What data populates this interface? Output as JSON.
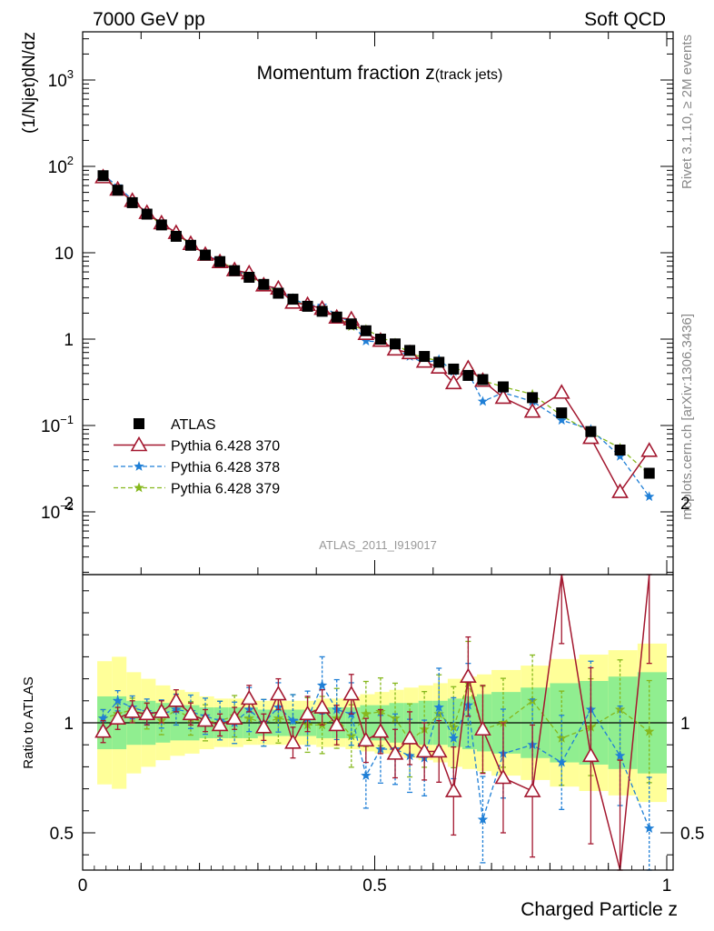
{
  "header": {
    "left": "7000 GeV pp",
    "right": "Soft QCD"
  },
  "side_labels": {
    "rivet": "Rivet 3.1.10, ≥ 2M events",
    "source": "mcplots.cern.ch [arXiv:1306.3436]"
  },
  "watermark": "ATLAS_2011_I919017",
  "colors": {
    "atlas": "#000000",
    "p370": "#a3172f",
    "p378": "#1f7fd6",
    "p379": "#86b81e",
    "band_inner": "#90ee90",
    "band_outer": "#ffff99"
  },
  "chart_data": [
    {
      "type": "line",
      "title": "Momentum fraction z(track jets)",
      "title_main": "Momentum fraction z",
      "title_sub": "(track jets)",
      "ylabel": "(1/Njet)dN/dz",
      "yscale": "log",
      "ylim": [
        0.0022,
        3000
      ],
      "xlim": [
        0,
        1.02
      ],
      "y_ticks": [
        {
          "v": 0.01,
          "base": "10",
          "exp": "−2"
        },
        {
          "v": 0.1,
          "base": "10",
          "exp": "−1"
        },
        {
          "v": 1,
          "base": "1",
          "exp": ""
        },
        {
          "v": 10,
          "base": "10",
          "exp": ""
        },
        {
          "v": 100,
          "base": "10",
          "exp": "2"
        },
        {
          "v": 1000,
          "base": "10",
          "exp": "3"
        }
      ],
      "legend": {
        "placement": "lower-left",
        "entries": [
          "ATLAS",
          "Pythia 6.428 370",
          "Pythia 6.428 378",
          "Pythia 6.428 379"
        ]
      },
      "x": [
        0.035,
        0.06,
        0.085,
        0.11,
        0.135,
        0.16,
        0.185,
        0.21,
        0.235,
        0.26,
        0.285,
        0.31,
        0.335,
        0.36,
        0.385,
        0.41,
        0.435,
        0.46,
        0.485,
        0.51,
        0.535,
        0.56,
        0.585,
        0.61,
        0.635,
        0.66,
        0.685,
        0.72,
        0.77,
        0.82,
        0.87,
        0.92,
        0.97
      ],
      "series": [
        {
          "name": "ATLAS",
          "key": "atlas",
          "marker": "square",
          "values": [
            78,
            53,
            38,
            28,
            21,
            15.5,
            12.2,
            9.4,
            7.9,
            6.2,
            5.2,
            4.3,
            3.4,
            2.9,
            2.4,
            2.1,
            1.8,
            1.5,
            1.25,
            1.0,
            0.88,
            0.74,
            0.63,
            0.54,
            0.45,
            0.38,
            0.34,
            0.28,
            0.21,
            0.14,
            0.085,
            0.052,
            0.028
          ]
        },
        {
          "name": "Pythia 6.428 370",
          "key": "p370",
          "marker": "triangle",
          "values": [
            75,
            54,
            40,
            29,
            22,
            17,
            12.7,
            9.5,
            7.8,
            6.3,
            5.8,
            4.2,
            3.85,
            2.65,
            2.5,
            2.25,
            1.78,
            1.7,
            1.15,
            0.96,
            0.76,
            0.69,
            0.55,
            0.47,
            0.31,
            0.46,
            0.33,
            0.21,
            0.145,
            0.24,
            0.072,
            0.017,
            0.051
          ]
        },
        {
          "name": "Pythia 6.428 378",
          "key": "p378",
          "marker": "star",
          "values": [
            80,
            59,
            41,
            29,
            22,
            17,
            12.6,
            9.7,
            8.0,
            6.2,
            5.5,
            4.3,
            3.7,
            2.95,
            2.45,
            2.45,
            1.9,
            1.55,
            0.95,
            0.93,
            0.77,
            0.63,
            0.53,
            0.58,
            0.42,
            0.41,
            0.19,
            0.24,
            0.19,
            0.115,
            0.09,
            0.044,
            0.015
          ]
        },
        {
          "name": "Pythia 6.428 379",
          "key": "p379",
          "marker": "star",
          "values": [
            78,
            55,
            39,
            29,
            21,
            16.5,
            12.5,
            9.4,
            8.0,
            6.5,
            5.3,
            4.3,
            3.5,
            2.95,
            2.35,
            2.05,
            1.85,
            1.4,
            1.3,
            1.05,
            0.9,
            0.68,
            0.61,
            0.56,
            0.44,
            0.45,
            0.33,
            0.28,
            0.23,
            0.13,
            0.083,
            0.055,
            0.027
          ]
        }
      ]
    },
    {
      "type": "line",
      "title": "",
      "ylabel": "Ratio to ATLAS",
      "xlabel": "Charged Particle z",
      "ylim": [
        0.35,
        2.35
      ],
      "xlim": [
        0,
        1.02
      ],
      "x_ticks": [
        0,
        0.5,
        1
      ],
      "y_ticks": [
        0.5,
        1,
        2
      ],
      "grid": false,
      "x": [
        0.035,
        0.06,
        0.085,
        0.11,
        0.135,
        0.16,
        0.185,
        0.21,
        0.235,
        0.26,
        0.285,
        0.31,
        0.335,
        0.36,
        0.385,
        0.41,
        0.435,
        0.46,
        0.485,
        0.51,
        0.535,
        0.56,
        0.585,
        0.61,
        0.635,
        0.66,
        0.685,
        0.72,
        0.77,
        0.82,
        0.87,
        0.92,
        0.97
      ],
      "bins": [
        0.025,
        0.05,
        0.075,
        0.1,
        0.125,
        0.15,
        0.175,
        0.2,
        0.225,
        0.25,
        0.275,
        0.3,
        0.325,
        0.35,
        0.375,
        0.4,
        0.425,
        0.45,
        0.475,
        0.5,
        0.525,
        0.55,
        0.575,
        0.6,
        0.625,
        0.65,
        0.675,
        0.7,
        0.75,
        0.8,
        0.85,
        0.9,
        0.95,
        1.0
      ],
      "band_inner": [
        0.12,
        0.12,
        0.1,
        0.1,
        0.09,
        0.08,
        0.08,
        0.07,
        0.07,
        0.07,
        0.07,
        0.06,
        0.06,
        0.06,
        0.06,
        0.07,
        0.07,
        0.07,
        0.08,
        0.08,
        0.09,
        0.09,
        0.1,
        0.1,
        0.11,
        0.12,
        0.13,
        0.14,
        0.16,
        0.18,
        0.19,
        0.21,
        0.23
      ],
      "band_outer": [
        0.28,
        0.3,
        0.23,
        0.2,
        0.17,
        0.15,
        0.14,
        0.12,
        0.11,
        0.11,
        0.1,
        0.1,
        0.1,
        0.1,
        0.1,
        0.11,
        0.11,
        0.12,
        0.13,
        0.14,
        0.15,
        0.16,
        0.17,
        0.18,
        0.2,
        0.21,
        0.22,
        0.24,
        0.26,
        0.29,
        0.31,
        0.33,
        0.36
      ],
      "series": [
        {
          "name": "Pythia 6.428 370",
          "key": "p370",
          "marker": "triangle",
          "values": [
            0.96,
            1.02,
            1.05,
            1.04,
            1.05,
            1.1,
            1.04,
            1.01,
            0.99,
            1.02,
            1.11,
            0.98,
            1.13,
            0.91,
            1.04,
            1.07,
            0.99,
            1.13,
            0.92,
            0.96,
            0.86,
            0.93,
            0.87,
            0.87,
            0.69,
            1.21,
            0.97,
            0.75,
            0.69,
            1.71,
            0.85,
            0.33,
            1.82
          ],
          "err": [
            0.05,
            0.05,
            0.05,
            0.05,
            0.05,
            0.05,
            0.05,
            0.05,
            0.05,
            0.05,
            0.06,
            0.06,
            0.07,
            0.07,
            0.08,
            0.08,
            0.09,
            0.09,
            0.1,
            0.1,
            0.11,
            0.12,
            0.13,
            0.14,
            0.2,
            0.18,
            0.2,
            0.25,
            0.3,
            0.35,
            0.4,
            0.5,
            0.55
          ]
        },
        {
          "name": "Pythia 6.428 378",
          "key": "p378",
          "marker": "star",
          "values": [
            1.02,
            1.1,
            1.07,
            1.05,
            1.04,
            1.06,
            1.05,
            1.03,
            1.01,
            1.0,
            1.06,
            1.0,
            1.07,
            1.01,
            1.02,
            1.17,
            1.06,
            1.04,
            0.76,
            0.88,
            0.88,
            0.85,
            0.84,
            1.07,
            0.93,
            1.08,
            0.56,
            0.86,
            0.9,
            0.82,
            1.06,
            0.85,
            0.52
          ]
        },
        {
          "name": "Pythia 6.428 379",
          "key": "p379",
          "marker": "star",
          "values": [
            1.02,
            1.04,
            1.06,
            1.03,
            1.01,
            1.06,
            1.02,
            1.0,
            1.01,
            1.03,
            1.02,
            1.0,
            1.02,
            1.01,
            0.99,
            0.99,
            1.02,
            0.94,
            1.04,
            1.05,
            1.02,
            0.92,
            0.97,
            1.04,
            0.98,
            1.18,
            0.97,
            1.0,
            1.1,
            0.93,
            0.98,
            1.06,
            0.96
          ]
        }
      ]
    }
  ]
}
